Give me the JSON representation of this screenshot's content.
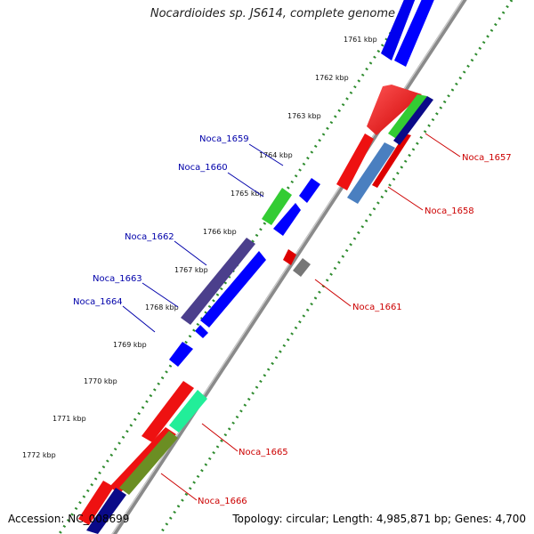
{
  "map": {
    "title": "Nocardioides sp. JS614, complete genome",
    "accession": "Accession: NC_008699",
    "summary": "Topology: circular; Length: 4,985,871 bp; Genes: 4,700"
  },
  "colors": {
    "backbone": "#888888",
    "ticks": "#2e8b2e",
    "forward_label": "#cc0000",
    "reverse_label": "#0000aa"
  },
  "kbp_labels": [
    "1761 kbp",
    "1762 kbp",
    "1763 kbp",
    "1764 kbp",
    "1765 kbp",
    "1766 kbp",
    "1767 kbp",
    "1768 kbp",
    "1769 kbp",
    "1770 kbp",
    "1771 kbp",
    "1772 kbp"
  ],
  "genes": [
    {
      "name": "Noca_1657",
      "strand": "forward",
      "color": "#2e3192"
    },
    {
      "name": "Noca_1658",
      "strand": "forward",
      "color": "#4a7fc0"
    },
    {
      "name": "Noca_1659",
      "strand": "reverse",
      "color": "#0000ff"
    },
    {
      "name": "Noca_1660",
      "strand": "reverse",
      "color": "#33cc33"
    },
    {
      "name": "Noca_1661",
      "strand": "forward",
      "color": "#777777"
    },
    {
      "name": "Noca_1662",
      "strand": "reverse",
      "color": "#4b3f8c"
    },
    {
      "name": "Noca_1663",
      "strand": "reverse",
      "color": "#0000ff"
    },
    {
      "name": "Noca_1664",
      "strand": "reverse",
      "color": "#0000ff"
    },
    {
      "name": "Noca_1665",
      "strand": "forward",
      "color": "#22ee99"
    },
    {
      "name": "Noca_1666",
      "strand": "forward",
      "color": "#6b8e23"
    }
  ]
}
